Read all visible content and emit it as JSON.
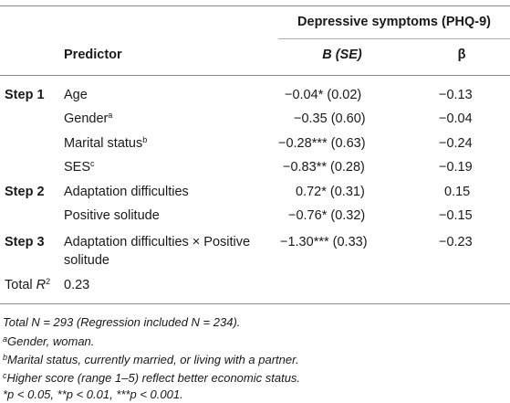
{
  "table": {
    "group_header": "Depressive symptoms (PHQ-9)",
    "columns": {
      "predictor": "Predictor",
      "b_se": "B (SE)",
      "beta": "β"
    },
    "rows": [
      {
        "step": "Step 1",
        "predictor": "Age",
        "sup": "",
        "b_se": "−0.04* (0.02)",
        "beta": "−0.13"
      },
      {
        "step": "",
        "predictor": "Gender",
        "sup": "a",
        "b_se": "−0.35 (0.60)",
        "beta": "−0.04"
      },
      {
        "step": "",
        "predictor": "Marital status",
        "sup": "b",
        "b_se": "−0.28*** (0.63)",
        "beta": "−0.24"
      },
      {
        "step": "",
        "predictor": "SES",
        "sup": "c",
        "b_se": "−0.83** (0.28)",
        "beta": "−0.19"
      },
      {
        "step": "Step 2",
        "predictor": "Adaptation difficulties",
        "sup": "",
        "b_se": "0.72* (0.31)",
        "beta": "0.15"
      },
      {
        "step": "",
        "predictor": "Positive solitude",
        "sup": "",
        "b_se": "−0.76* (0.32)",
        "beta": "−0.15"
      },
      {
        "step": "Step 3",
        "predictor_line1": "Adaptation difficulties × Positive",
        "predictor_line2": "solitude",
        "b_se": "−1.30*** (0.33)",
        "beta": "−0.23"
      }
    ],
    "total_r2": {
      "label": "Total ",
      "label_r": "R",
      "label_sup": "2",
      "value": "0.23"
    }
  },
  "footnotes": {
    "n_line": "Total N = 293 (Regression included N = 234).",
    "a_mark": "a",
    "a_text": "Gender, woman.",
    "b_mark": "b",
    "b_text": "Marital status, currently married, or living with a partner.",
    "c_mark": "c",
    "c_text": "Higher score (range 1–5) reflect better economic status.",
    "p_line": "*p < 0.05, **p < 0.01, ***p < 0.001."
  }
}
